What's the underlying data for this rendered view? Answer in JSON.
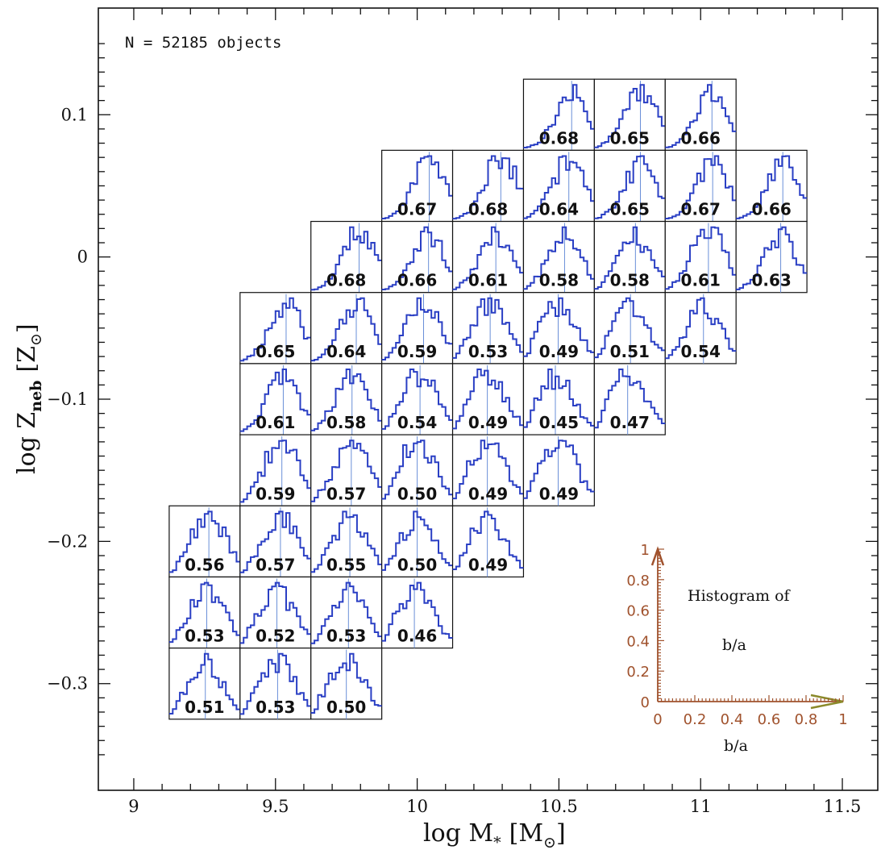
{
  "chart_data": {
    "type": "histogram-grid",
    "annotation": "N = 52185 objects",
    "xlabel": {
      "main": "log M",
      "sub": "*",
      "unit": "[M",
      "unit_sub": "⊙",
      "close": "]"
    },
    "ylabel": {
      "main": "log Z",
      "sub": "neb",
      "unit": "[Z",
      "unit_sub": "⊙",
      "close": "]"
    },
    "xlim": [
      8.875,
      11.625
    ],
    "ylim": [
      -0.375,
      0.175
    ],
    "x_ticks": [
      {
        "value": 9,
        "label": "9"
      },
      {
        "value": 9.5,
        "label": "9.5"
      },
      {
        "value": 10,
        "label": "10"
      },
      {
        "value": 10.5,
        "label": "10.5"
      },
      {
        "value": 11,
        "label": "11"
      },
      {
        "value": 11.5,
        "label": "11.5"
      }
    ],
    "y_ticks": [
      {
        "value": 0.1,
        "label": "0.1"
      },
      {
        "value": 0,
        "label": "0"
      },
      {
        "value": -0.1,
        "label": "−0.1"
      },
      {
        "value": -0.2,
        "label": "−0.2"
      },
      {
        "value": -0.3,
        "label": "−0.3"
      }
    ],
    "bin_size": {
      "mass": 0.25,
      "metallicity": 0.05
    },
    "cells": [
      {
        "mass": 10.5,
        "z": 0.1,
        "median": 0.68,
        "label": "0.68"
      },
      {
        "mass": 10.75,
        "z": 0.1,
        "median": 0.65,
        "label": "0.65"
      },
      {
        "mass": 11.0,
        "z": 0.1,
        "median": 0.66,
        "label": "0.66"
      },
      {
        "mass": 10.0,
        "z": 0.05,
        "median": 0.67,
        "label": "0.67"
      },
      {
        "mass": 10.25,
        "z": 0.05,
        "median": 0.68,
        "label": "0.68"
      },
      {
        "mass": 10.5,
        "z": 0.05,
        "median": 0.64,
        "label": "0.64"
      },
      {
        "mass": 10.75,
        "z": 0.05,
        "median": 0.65,
        "label": "0.65"
      },
      {
        "mass": 11.0,
        "z": 0.05,
        "median": 0.67,
        "label": "0.67"
      },
      {
        "mass": 11.25,
        "z": 0.05,
        "median": 0.66,
        "label": "0.66"
      },
      {
        "mass": 9.75,
        "z": 0.0,
        "median": 0.68,
        "label": "0.68"
      },
      {
        "mass": 10.0,
        "z": 0.0,
        "median": 0.66,
        "label": "0.66"
      },
      {
        "mass": 10.25,
        "z": 0.0,
        "median": 0.61,
        "label": "0.61"
      },
      {
        "mass": 10.5,
        "z": 0.0,
        "median": 0.58,
        "label": "0.58"
      },
      {
        "mass": 10.75,
        "z": 0.0,
        "median": 0.58,
        "label": "0.58"
      },
      {
        "mass": 11.0,
        "z": 0.0,
        "median": 0.61,
        "label": "0.61"
      },
      {
        "mass": 11.25,
        "z": 0.0,
        "median": 0.63,
        "label": "0.63"
      },
      {
        "mass": 9.5,
        "z": -0.05,
        "median": 0.65,
        "label": "0.65"
      },
      {
        "mass": 9.75,
        "z": -0.05,
        "median": 0.64,
        "label": "0.64"
      },
      {
        "mass": 10.0,
        "z": -0.05,
        "median": 0.59,
        "label": "0.59"
      },
      {
        "mass": 10.25,
        "z": -0.05,
        "median": 0.53,
        "label": "0.53"
      },
      {
        "mass": 10.5,
        "z": -0.05,
        "median": 0.49,
        "label": "0.49"
      },
      {
        "mass": 10.75,
        "z": -0.05,
        "median": 0.51,
        "label": "0.51"
      },
      {
        "mass": 11.0,
        "z": -0.05,
        "median": 0.54,
        "label": "0.54"
      },
      {
        "mass": 9.5,
        "z": -0.1,
        "median": 0.61,
        "label": "0.61"
      },
      {
        "mass": 9.75,
        "z": -0.1,
        "median": 0.58,
        "label": "0.58"
      },
      {
        "mass": 10.0,
        "z": -0.1,
        "median": 0.54,
        "label": "0.54"
      },
      {
        "mass": 10.25,
        "z": -0.1,
        "median": 0.49,
        "label": "0.49"
      },
      {
        "mass": 10.5,
        "z": -0.1,
        "median": 0.45,
        "label": "0.45"
      },
      {
        "mass": 10.75,
        "z": -0.1,
        "median": 0.47,
        "label": "0.47"
      },
      {
        "mass": 9.5,
        "z": -0.15,
        "median": 0.59,
        "label": "0.59"
      },
      {
        "mass": 9.75,
        "z": -0.15,
        "median": 0.57,
        "label": "0.57"
      },
      {
        "mass": 10.0,
        "z": -0.15,
        "median": 0.5,
        "label": "0.50"
      },
      {
        "mass": 10.25,
        "z": -0.15,
        "median": 0.49,
        "label": "0.49"
      },
      {
        "mass": 10.5,
        "z": -0.15,
        "median": 0.49,
        "label": "0.49"
      },
      {
        "mass": 9.25,
        "z": -0.2,
        "median": 0.56,
        "label": "0.56"
      },
      {
        "mass": 9.5,
        "z": -0.2,
        "median": 0.57,
        "label": "0.57"
      },
      {
        "mass": 9.75,
        "z": -0.2,
        "median": 0.55,
        "label": "0.55"
      },
      {
        "mass": 10.0,
        "z": -0.2,
        "median": 0.5,
        "label": "0.50"
      },
      {
        "mass": 10.25,
        "z": -0.2,
        "median": 0.49,
        "label": "0.49"
      },
      {
        "mass": 9.25,
        "z": -0.25,
        "median": 0.53,
        "label": "0.53"
      },
      {
        "mass": 9.5,
        "z": -0.25,
        "median": 0.52,
        "label": "0.52"
      },
      {
        "mass": 9.75,
        "z": -0.25,
        "median": 0.53,
        "label": "0.53"
      },
      {
        "mass": 10.0,
        "z": -0.25,
        "median": 0.46,
        "label": "0.46"
      },
      {
        "mass": 9.25,
        "z": -0.3,
        "median": 0.51,
        "label": "0.51"
      },
      {
        "mass": 9.5,
        "z": -0.3,
        "median": 0.53,
        "label": "0.53"
      },
      {
        "mass": 9.75,
        "z": -0.3,
        "median": 0.5,
        "label": "0.50"
      }
    ],
    "legend": {
      "title_line1": "Histogram of",
      "title_line2": "b/a",
      "xlabel": "b/a",
      "x_ticks": [
        "0",
        "0.2",
        "0.4",
        "0.6",
        "0.8",
        "1"
      ],
      "y_ticks": [
        "0",
        "0.2",
        "0.4",
        "0.6",
        "0.8",
        "1"
      ]
    },
    "colors": {
      "histogram": "#2a3fc4",
      "median_line": "#6a8fd8",
      "legend_axis": "#a0522d",
      "legend_arrow": "#8b8a2a"
    }
  }
}
